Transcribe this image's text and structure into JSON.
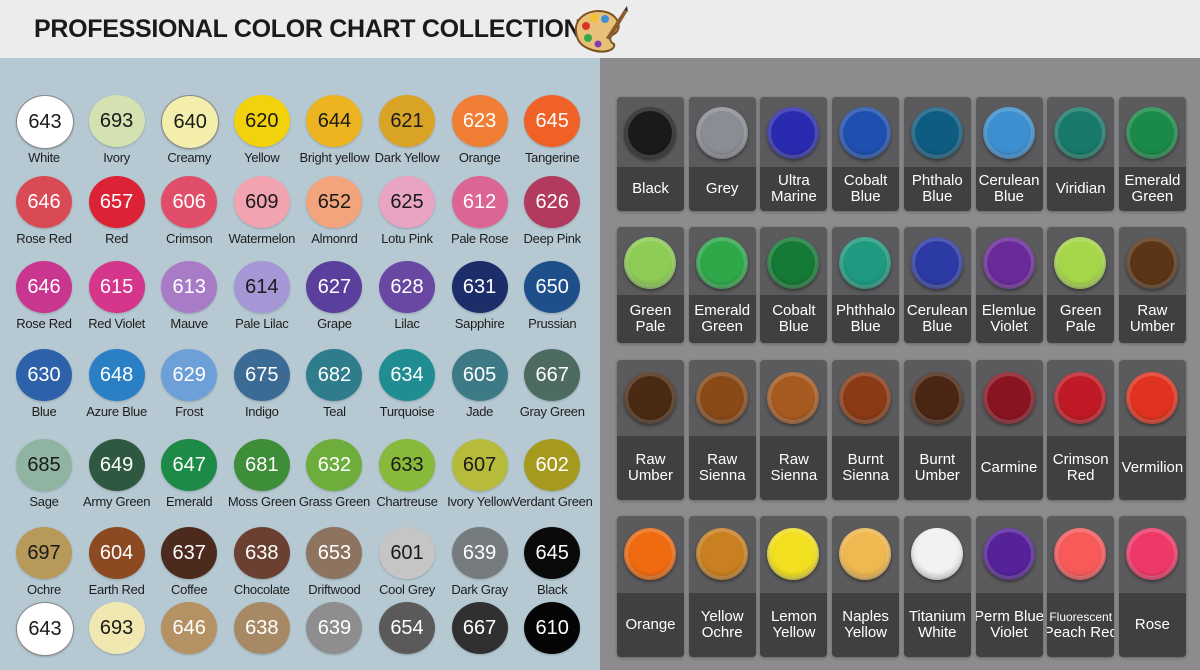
{
  "header": {
    "title": "PROFESSIONAL COLOR CHART COLLECTION"
  },
  "swatches": [
    [
      {
        "code": "643",
        "name": "White",
        "color": "#ffffff"
      },
      {
        "code": "693",
        "name": "Ivory",
        "color": "#d3e2b0"
      },
      {
        "code": "640",
        "name": "Creamy",
        "color": "#f3eeab"
      },
      {
        "code": "620",
        "name": "Yellow",
        "color": "#f2d20a"
      },
      {
        "code": "644",
        "name": "Bright yellow",
        "color": "#ebb420"
      },
      {
        "code": "621",
        "name": "Dark Yellow",
        "color": "#d9a326"
      },
      {
        "code": "623",
        "name": "Orange",
        "color": "#f07f35"
      },
      {
        "code": "645",
        "name": "Tangerine",
        "color": "#ef6126"
      }
    ],
    [
      {
        "code": "646",
        "name": "Rose Red",
        "color": "#d94a55"
      },
      {
        "code": "657",
        "name": "Red",
        "color": "#dc2235"
      },
      {
        "code": "606",
        "name": "Crimson",
        "color": "#e04e6a"
      },
      {
        "code": "609",
        "name": "Watermelon",
        "color": "#f2a3b0"
      },
      {
        "code": "652",
        "name": "Almonrd",
        "color": "#f2a47c"
      },
      {
        "code": "625",
        "name": "Lotu Pink",
        "color": "#e9a3c3"
      },
      {
        "code": "612",
        "name": "Pale Rose",
        "color": "#dd6596"
      },
      {
        "code": "626",
        "name": "Deep Pink",
        "color": "#b33a5f"
      }
    ],
    [
      {
        "code": "646",
        "name": "Rose Red",
        "color": "#c9368f"
      },
      {
        "code": "615",
        "name": "Red Violet",
        "color": "#d5358b"
      },
      {
        "code": "613",
        "name": "Mauve",
        "color": "#a87bc6"
      },
      {
        "code": "614",
        "name": "Pale Lilac",
        "color": "#a596d6"
      },
      {
        "code": "627",
        "name": "Grape",
        "color": "#5b3f9c"
      },
      {
        "code": "628",
        "name": "Lilac",
        "color": "#6848a2"
      },
      {
        "code": "631",
        "name": "Sapphire",
        "color": "#1d2d6a"
      },
      {
        "code": "650",
        "name": "Prussian",
        "color": "#1f4f8a"
      }
    ],
    [
      {
        "code": "630",
        "name": "Blue",
        "color": "#2d62ab"
      },
      {
        "code": "648",
        "name": "Azure Blue",
        "color": "#2b7fc4"
      },
      {
        "code": "629",
        "name": "Frost",
        "color": "#6d9fd8"
      },
      {
        "code": "675",
        "name": "Indigo",
        "color": "#3b6a94"
      },
      {
        "code": "682",
        "name": "Teal",
        "color": "#2f7c8c"
      },
      {
        "code": "634",
        "name": "Turquoise",
        "color": "#1f8d92"
      },
      {
        "code": "605",
        "name": "Jade",
        "color": "#3e7a86"
      },
      {
        "code": "667",
        "name": "Gray Green",
        "color": "#4e6b62"
      }
    ],
    [
      {
        "code": "685",
        "name": "Sage",
        "color": "#8fb5a2"
      },
      {
        "code": "649",
        "name": "Army Green",
        "color": "#2e5840"
      },
      {
        "code": "647",
        "name": "Emerald",
        "color": "#1d8a47"
      },
      {
        "code": "681",
        "name": "Moss Green",
        "color": "#3d8d39"
      },
      {
        "code": "632",
        "name": "Grass Green",
        "color": "#6cad3c"
      },
      {
        "code": "633",
        "name": "Chartreuse",
        "color": "#88b93a"
      },
      {
        "code": "607",
        "name": "Ivory Yellow",
        "color": "#b7bb3b"
      },
      {
        "code": "602",
        "name": "Verdant Green",
        "color": "#a59a1d"
      }
    ],
    [
      {
        "code": "697",
        "name": "Ochre",
        "color": "#b7995a"
      },
      {
        "code": "604",
        "name": "Earth Red",
        "color": "#8b4a22"
      },
      {
        "code": "637",
        "name": "Coffee",
        "color": "#4c2a1d"
      },
      {
        "code": "638",
        "name": "Chocolate",
        "color": "#6b4032"
      },
      {
        "code": "653",
        "name": "Driftwood",
        "color": "#8c7461"
      },
      {
        "code": "601",
        "name": "Cool Grey",
        "color": "#c5c5c5"
      },
      {
        "code": "639",
        "name": "Dark Gray",
        "color": "#767b7e"
      },
      {
        "code": "645",
        "name": "Black",
        "color": "#0a0a0a"
      }
    ],
    [
      {
        "code": "643",
        "color": "#ffffff"
      },
      {
        "code": "693",
        "color": "#f0e8b0"
      },
      {
        "code": "646",
        "color": "#b49263"
      },
      {
        "code": "638",
        "color": "#a78a65"
      },
      {
        "code": "639",
        "color": "#8e8e8e"
      },
      {
        "code": "654",
        "color": "#5a5a5a"
      },
      {
        "code": "667",
        "color": "#303030"
      },
      {
        "code": "610",
        "color": "#050505"
      }
    ]
  ],
  "paints": [
    [
      {
        "name": [
          "Black"
        ],
        "color": "#1a1a1a"
      },
      {
        "name": [
          "Grey"
        ],
        "color": "#8a8d93"
      },
      {
        "name": [
          "Ultra",
          "Marine"
        ],
        "color": "#2a2ab0"
      },
      {
        "name": [
          "Cobalt",
          "Blue"
        ],
        "color": "#1f4fb0"
      },
      {
        "name": [
          "Phthalo",
          "Blue"
        ],
        "color": "#0f5c82"
      },
      {
        "name": [
          "Cerulean",
          "Blue"
        ],
        "color": "#3d8fd0"
      },
      {
        "name": [
          "Viridian"
        ],
        "color": "#197a6a"
      },
      {
        "name": [
          "Emerald",
          "Green"
        ],
        "color": "#1a8a4a"
      }
    ],
    [
      {
        "name": [
          "Green",
          "Pale"
        ],
        "color": "#8dcc55"
      },
      {
        "name": [
          "Emerald",
          "Green"
        ],
        "color": "#2fa84a"
      },
      {
        "name": [
          "Cobalt",
          "Blue"
        ],
        "color": "#157a35"
      },
      {
        "name": [
          "Phthhalo",
          "Blue"
        ],
        "color": "#1f9a80"
      },
      {
        "name": [
          "Cerulean",
          "Blue"
        ],
        "color": "#2c3aa5"
      },
      {
        "name": [
          "Elemlue",
          "Violet"
        ],
        "color": "#6b2a9a"
      },
      {
        "name": [
          "Green",
          "Pale"
        ],
        "color": "#a6d64a"
      },
      {
        "name": [
          "Raw",
          "Umber"
        ],
        "color": "#5a3518"
      }
    ],
    [
      {
        "name": [
          "Raw",
          "Umber"
        ],
        "color": "#4a2a12"
      },
      {
        "name": [
          "Raw",
          "Sienna"
        ],
        "color": "#8a4a18"
      },
      {
        "name": [
          "Raw",
          "Sienna"
        ],
        "color": "#a65a20"
      },
      {
        "name": [
          "Burnt",
          "Sienna"
        ],
        "color": "#8a3a14"
      },
      {
        "name": [
          "Burnt",
          "Umber"
        ],
        "color": "#4a2614"
      },
      {
        "name": [
          "Carmine"
        ],
        "color": "#8a1422"
      },
      {
        "name": [
          "Crimson",
          "Red"
        ],
        "color": "#c01a26"
      },
      {
        "name": [
          "Vermilion"
        ],
        "color": "#e0321e"
      }
    ],
    [
      {
        "name": [
          "Orange"
        ],
        "color": "#f06a10"
      },
      {
        "name": [
          "Yellow",
          "Ochre"
        ],
        "color": "#c98020"
      },
      {
        "name": [
          "Lemon",
          "Yellow"
        ],
        "color": "#f2e020"
      },
      {
        "name": [
          "Naples",
          "Yellow"
        ],
        "color": "#f0b850"
      },
      {
        "name": [
          "Titanium",
          "White"
        ],
        "color": "#f2f2f2"
      },
      {
        "name": [
          "Perm Blue",
          "Violet"
        ],
        "color": "#55229a"
      },
      {
        "name": [
          "Fluorescent",
          "Peach Red"
        ],
        "color": "#f85a5a"
      },
      {
        "name": [
          "Rose"
        ],
        "color": "#f03868"
      }
    ]
  ]
}
